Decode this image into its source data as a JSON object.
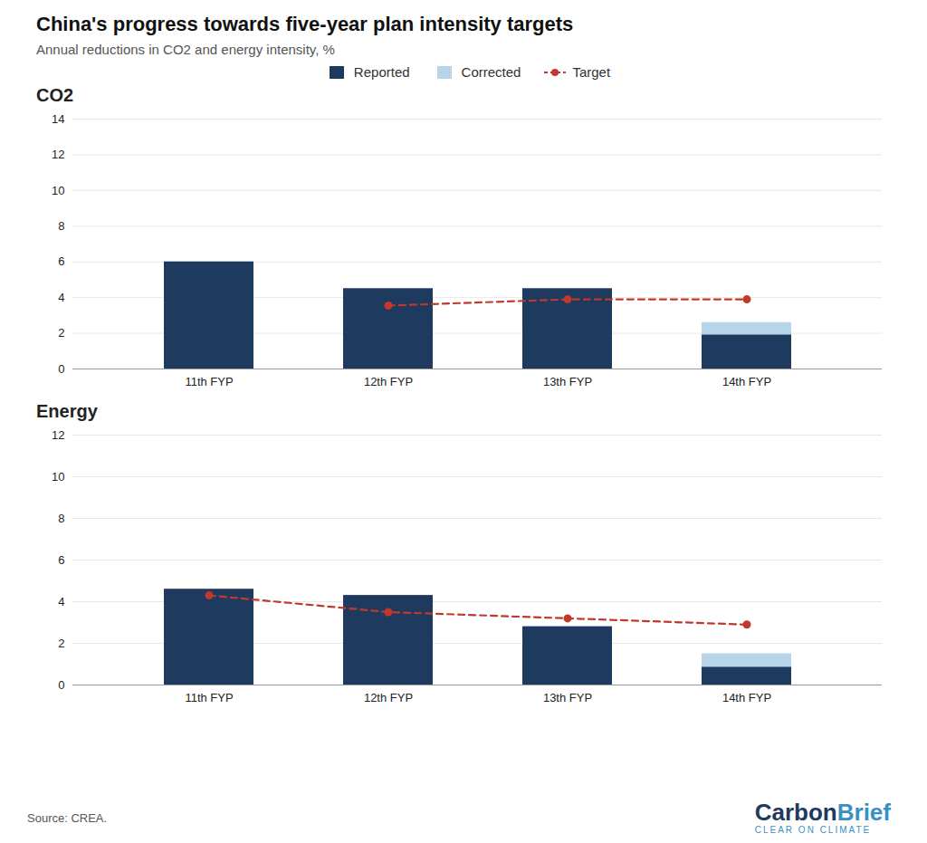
{
  "title": "China's progress towards five-year plan intensity targets",
  "subtitle": "Annual reductions in CO2 and energy intensity, %",
  "source": "Source: CREA.",
  "annotations": [
    {
      "text": "Carbon",
      "color": "#1e3a5f"
    },
    {
      "text": "Brief",
      "color": "#3a8fc4"
    },
    {
      "text": "CLEAR ON CLIMATE",
      "color": "#3a8fc4"
    }
  ],
  "chart_data": [
    {
      "type": "bar",
      "title": "CO2",
      "categories": [
        "11th FYP",
        "12th FYP",
        "13th FYP",
        "14th FYP"
      ],
      "series": [
        {
          "name": "Reported",
          "color": "#1e3a5f",
          "values": [
            6.0,
            4.5,
            4.5,
            1.9
          ]
        },
        {
          "name": "Corrected",
          "color": "#b8d4e8",
          "values": [
            null,
            null,
            null,
            2.6
          ]
        },
        {
          "name": "Target",
          "type": "line",
          "color": "#c0392b",
          "marker": "circle",
          "line_style": "dashed",
          "values": [
            null,
            3.55,
            3.9,
            3.9
          ]
        }
      ],
      "ylim": [
        0,
        14
      ],
      "yticks": [
        0,
        2,
        4,
        6,
        8,
        10,
        12,
        14
      ],
      "grid": true,
      "legend": "top"
    },
    {
      "type": "bar",
      "title": "Energy",
      "categories": [
        "11th FYP",
        "12th FYP",
        "13th FYP",
        "14th FYP"
      ],
      "series": [
        {
          "name": "Reported",
          "color": "#1e3a5f",
          "values": [
            4.6,
            4.3,
            2.8,
            0.85
          ]
        },
        {
          "name": "Corrected",
          "color": "#b8d4e8",
          "values": [
            null,
            null,
            null,
            1.5
          ]
        },
        {
          "name": "Target",
          "type": "line",
          "color": "#c0392b",
          "marker": "circle",
          "line_style": "dashed",
          "values": [
            4.3,
            3.5,
            3.2,
            2.9
          ]
        }
      ],
      "ylim": [
        0,
        12
      ],
      "yticks": [
        0,
        2,
        4,
        6,
        8,
        10,
        12
      ],
      "grid": true
    }
  ]
}
